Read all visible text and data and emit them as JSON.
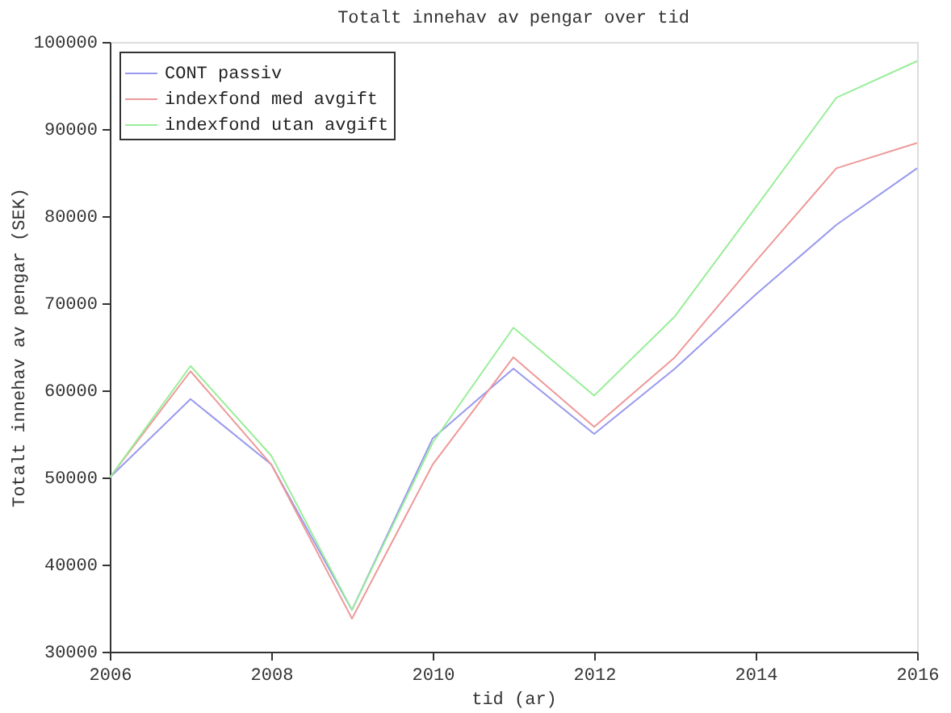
{
  "chart_data": {
    "type": "line",
    "title": "Totalt innehav av pengar over tid",
    "xlabel": "tid (ar)",
    "ylabel": "Totalt innehav av pengar (SEK)",
    "x": [
      2006,
      2007,
      2008,
      2009,
      2010,
      2011,
      2012,
      2013,
      2014,
      2015,
      2016
    ],
    "series": [
      {
        "name": "CONT passiv",
        "color": "#9999ee",
        "values": [
          50000,
          59000,
          51500,
          34800,
          54500,
          62500,
          55000,
          62500,
          71000,
          79000,
          85500
        ]
      },
      {
        "name": "indexfond med avgift",
        "color": "#ee9999",
        "values": [
          50000,
          62200,
          51500,
          33800,
          51500,
          63800,
          55800,
          63800,
          74800,
          85500,
          88400
        ]
      },
      {
        "name": "indexfond utan avgift",
        "color": "#99ee99",
        "values": [
          50000,
          62800,
          52500,
          34800,
          54000,
          67200,
          59400,
          68500,
          81000,
          93600,
          97800
        ]
      }
    ],
    "xlim": [
      2006,
      2016
    ],
    "xticks": [
      2006,
      2008,
      2010,
      2012,
      2014,
      2016
    ],
    "ylim": [
      30000,
      100000
    ],
    "yticks": [
      30000,
      40000,
      50000,
      60000,
      70000,
      80000,
      90000,
      100000
    ],
    "grid": false,
    "legend": "top left",
    "marker": "none",
    "line_style": "solid"
  }
}
